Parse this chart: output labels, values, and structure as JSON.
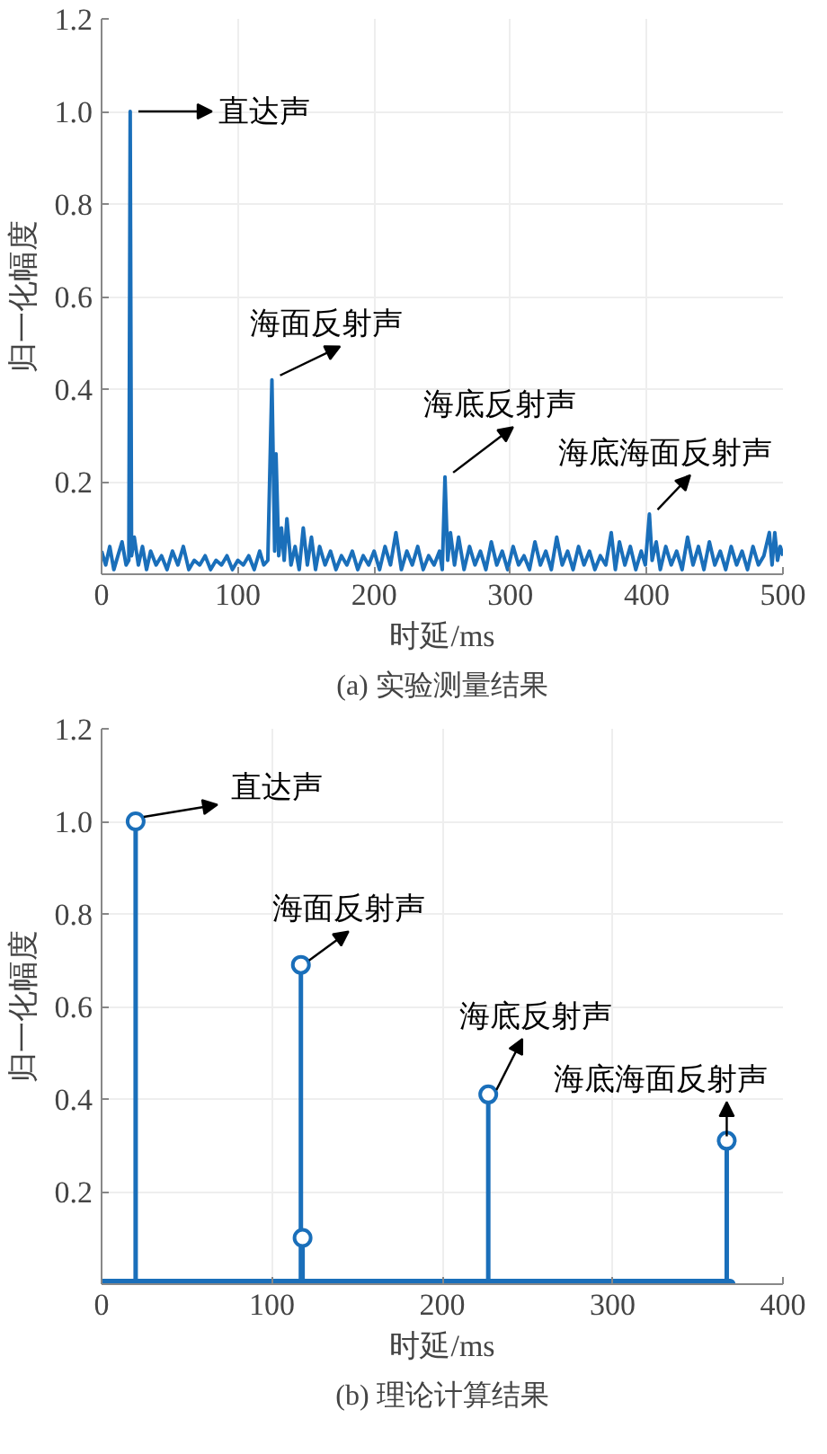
{
  "chart_data": [
    {
      "type": "line",
      "title": "(a) 实验测量结果",
      "xlabel": "时延/ms",
      "ylabel": "归一化幅度",
      "xlim": [
        0,
        500
      ],
      "ylim": [
        0,
        1.2
      ],
      "xticks": [
        0,
        100,
        200,
        300,
        400,
        500
      ],
      "yticks": [
        0.2,
        0.4,
        0.6,
        0.8,
        {
          "value": 1,
          "label": "1.0"
        },
        1.2
      ],
      "grid": true,
      "series": [
        {
          "color": "#1a6fba",
          "x": [
            0,
            3,
            6,
            9,
            12,
            15,
            18,
            20,
            21,
            22,
            24,
            27,
            30,
            33,
            36,
            40,
            44,
            48,
            52,
            56,
            60,
            64,
            68,
            72,
            76,
            80,
            84,
            88,
            92,
            96,
            100,
            104,
            108,
            112,
            116,
            119,
            122,
            125,
            127,
            128,
            130,
            132,
            134,
            136,
            139,
            142,
            145,
            148,
            151,
            154,
            157,
            160,
            164,
            168,
            172,
            176,
            180,
            184,
            188,
            192,
            196,
            200,
            204,
            208,
            212,
            216,
            220,
            224,
            228,
            232,
            236,
            240,
            244,
            248,
            250,
            252,
            254,
            256,
            259,
            262,
            266,
            270,
            274,
            278,
            282,
            286,
            290,
            294,
            298,
            302,
            306,
            310,
            314,
            318,
            322,
            326,
            330,
            334,
            338,
            342,
            346,
            350,
            354,
            358,
            362,
            366,
            370,
            374,
            377,
            380,
            384,
            388,
            392,
            396,
            399,
            402,
            404,
            407,
            410,
            414,
            418,
            422,
            426,
            430,
            434,
            438,
            442,
            446,
            450,
            454,
            458,
            462,
            466,
            470,
            474,
            478,
            482,
            486,
            490,
            492,
            494,
            496,
            498,
            500
          ],
          "values": [
            0.05,
            0.02,
            0.06,
            0.01,
            0.04,
            0.07,
            0.02,
            0.03,
            1.0,
            0.04,
            0.08,
            0.02,
            0.06,
            0.01,
            0.05,
            0.02,
            0.04,
            0.01,
            0.05,
            0.02,
            0.06,
            0.01,
            0.03,
            0.02,
            0.04,
            0.01,
            0.03,
            0.02,
            0.04,
            0.01,
            0.03,
            0.02,
            0.04,
            0.01,
            0.05,
            0.02,
            0.03,
            0.42,
            0.05,
            0.26,
            0.04,
            0.1,
            0.03,
            0.12,
            0.02,
            0.06,
            0.01,
            0.1,
            0.02,
            0.08,
            0.01,
            0.06,
            0.02,
            0.05,
            0.01,
            0.04,
            0.02,
            0.05,
            0.01,
            0.04,
            0.02,
            0.05,
            0.01,
            0.06,
            0.02,
            0.09,
            0.01,
            0.05,
            0.02,
            0.06,
            0.01,
            0.04,
            0.02,
            0.05,
            0.01,
            0.21,
            0.03,
            0.09,
            0.02,
            0.08,
            0.01,
            0.06,
            0.02,
            0.05,
            0.01,
            0.07,
            0.02,
            0.05,
            0.01,
            0.06,
            0.02,
            0.04,
            0.01,
            0.07,
            0.02,
            0.05,
            0.01,
            0.08,
            0.02,
            0.05,
            0.01,
            0.06,
            0.02,
            0.05,
            0.01,
            0.04,
            0.02,
            0.09,
            0.01,
            0.07,
            0.02,
            0.06,
            0.01,
            0.05,
            0.02,
            0.13,
            0.03,
            0.07,
            0.01,
            0.06,
            0.02,
            0.05,
            0.01,
            0.08,
            0.02,
            0.06,
            0.01,
            0.07,
            0.02,
            0.05,
            0.01,
            0.06,
            0.02,
            0.05,
            0.01,
            0.06,
            0.02,
            0.04,
            0.09,
            0.02,
            0.09,
            0.03,
            0.06,
            0.04
          ]
        }
      ],
      "annotations": [
        {
          "text": "直达声",
          "x": 21,
          "y": 1.0
        },
        {
          "text": "海面反射声",
          "x": 125,
          "y": 0.42
        },
        {
          "text": "海底反射声",
          "x": 252,
          "y": 0.21
        },
        {
          "text": "海底海面反射声",
          "x": 402,
          "y": 0.13
        }
      ]
    },
    {
      "type": "lollipop",
      "title": "(b) 理论计算结果",
      "xlabel": "时延/ms",
      "ylabel": "归一化幅度",
      "xlim": [
        0,
        400
      ],
      "ylim": [
        0,
        1.2
      ],
      "xticks": [
        0,
        100,
        200,
        300,
        400
      ],
      "yticks": [
        0.2,
        0.4,
        0.6,
        0.8,
        {
          "value": 1,
          "label": "1.0"
        },
        1.2
      ],
      "grid": true,
      "marker": "circle",
      "series": [
        {
          "color": "#1a6fba",
          "x": [
            20,
            117,
            118,
            227,
            367
          ],
          "values": [
            1.0,
            0.69,
            0.1,
            0.41,
            0.31
          ]
        },
        {
          "type": "line",
          "marker": "none",
          "color": "#1a6fba",
          "x": [
            0,
            369
          ],
          "values": [
            0,
            0
          ]
        }
      ],
      "annotations": [
        {
          "text": "直达声",
          "x": 20,
          "y": 1.0
        },
        {
          "text": "海面反射声",
          "x": 117,
          "y": 0.69
        },
        {
          "text": "海底反射声",
          "x": 227,
          "y": 0.41
        },
        {
          "text": "海底海面反射声",
          "x": 367,
          "y": 0.31
        }
      ]
    }
  ]
}
